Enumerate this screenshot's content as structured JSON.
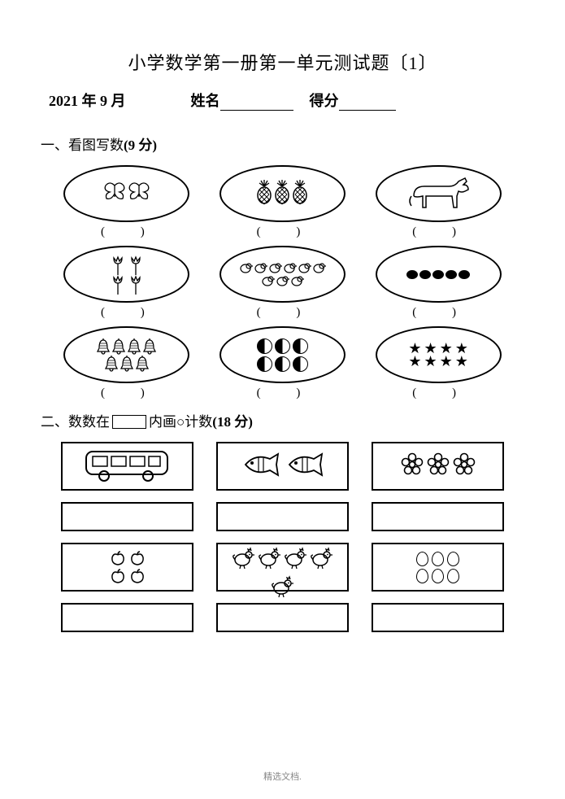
{
  "title": "小学数学第一册第一单元测试题〔1〕",
  "info": {
    "date": "2021 年 9 月",
    "name_label": "姓名",
    "score_label": "得分"
  },
  "section1": {
    "heading_prefix": "一、",
    "heading_text": "看图写数",
    "points": "(9 分)",
    "paren_placeholder": "( )",
    "items": [
      {
        "type": "butterfly",
        "count": 2
      },
      {
        "type": "pineapple",
        "count": 3
      },
      {
        "type": "donkey",
        "count": 1
      },
      {
        "type": "tulip",
        "count": 4
      },
      {
        "type": "chick",
        "count": 9
      },
      {
        "type": "dot",
        "count": 5
      },
      {
        "type": "bell",
        "count": 7
      },
      {
        "type": "ball",
        "count": 6
      },
      {
        "type": "star",
        "count": 8
      }
    ]
  },
  "section2": {
    "heading_prefix": "二、",
    "heading_text_a": "数数在",
    "heading_text_b": "内画○计数",
    "points": "(18 分)",
    "items": [
      {
        "type": "bus",
        "count": 1
      },
      {
        "type": "fish",
        "count": 2
      },
      {
        "type": "flower5",
        "count": 3
      },
      {
        "type": "apple",
        "count": 4
      },
      {
        "type": "chicken",
        "count": 5
      },
      {
        "type": "egg",
        "count": 6
      }
    ]
  },
  "footer": "精选文档.",
  "colors": {
    "fg": "#000000",
    "bg": "#ffffff",
    "footer": "#888888"
  }
}
